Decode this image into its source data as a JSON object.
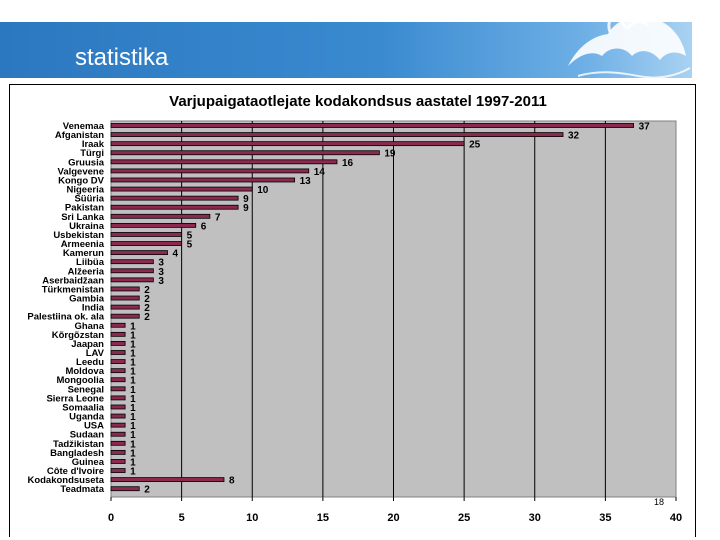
{
  "header": {
    "title": "statistika"
  },
  "slide": {
    "page_number": "18"
  },
  "colors": {
    "bar_fill": "#8b2a4f",
    "bar_stroke": "#000000",
    "plot_bg": "#c0c0c0",
    "banner": "#2c78c0"
  },
  "chart_data": {
    "type": "bar",
    "orientation": "horizontal",
    "title": "Varjupaigataotlejate kodakondsus aastatel 1997-2011",
    "xlabel": "",
    "ylabel": "",
    "xlim": [
      0,
      40
    ],
    "xticks": [
      0,
      5,
      10,
      15,
      20,
      25,
      30,
      35,
      40
    ],
    "grid": "vertical",
    "legend": "none",
    "categories": [
      "Venemaa",
      "Afganistan",
      "Iraak",
      "Türgi",
      "Gruusia",
      "Valgevene",
      "Kongo DV",
      "Nigeeria",
      "Süüria",
      "Pakistan",
      "Sri Lanka",
      "Ukraina",
      "Usbekistan",
      "Armeenia",
      "Kamerun",
      "Liibüa",
      "Alžeeria",
      "Aserbaidžaan",
      "Türkmenistan",
      "Gambia",
      "India",
      "Palestiina ok. ala",
      "Ghana",
      "Kõrgõzstan",
      "Jaapan",
      "LAV",
      "Leedu",
      "Moldova",
      "Mongoolia",
      "Senegal",
      "Sierra Leone",
      "Somaalia",
      "Uganda",
      "USA",
      "Sudaan",
      "Tadžikistan",
      "Bangladesh",
      "Guinea",
      "Côte d'Ivoire",
      "Kodakondsuseta",
      "Teadmata"
    ],
    "values": [
      37,
      32,
      25,
      19,
      16,
      14,
      13,
      10,
      9,
      9,
      7,
      6,
      5,
      5,
      4,
      3,
      3,
      3,
      2,
      2,
      2,
      2,
      1,
      1,
      1,
      1,
      1,
      1,
      1,
      1,
      1,
      1,
      1,
      1,
      1,
      1,
      1,
      1,
      1,
      8,
      2
    ],
    "data_labels": [
      "37",
      "32",
      "25",
      "19",
      "16",
      "14",
      "13",
      "10",
      "9",
      "9",
      "7",
      "6",
      "5",
      "5",
      "4",
      "3",
      "3",
      "3",
      "2",
      "2",
      "2",
      "2",
      "1",
      "1",
      "1",
      "1",
      "1",
      "1",
      "1",
      "1",
      "1",
      "1",
      "1",
      "1",
      "1",
      "1",
      "1",
      "1",
      "1",
      "8",
      "2"
    ]
  }
}
